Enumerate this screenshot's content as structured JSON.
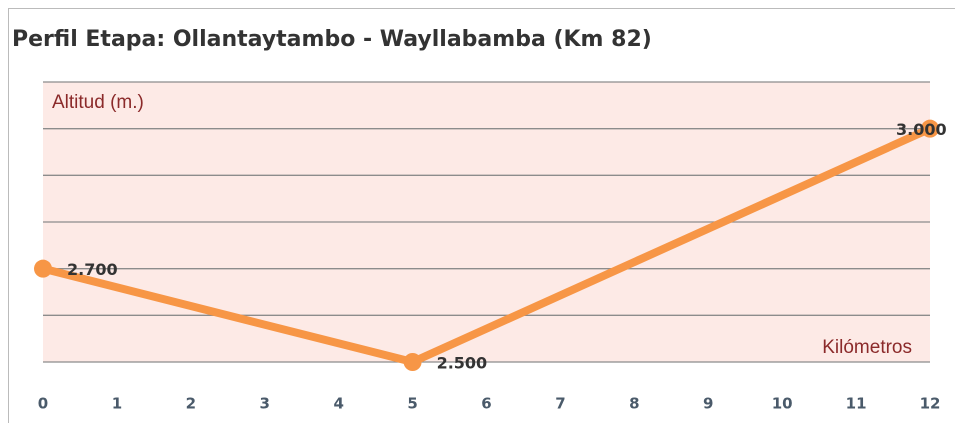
{
  "chart_data": {
    "type": "line",
    "title": "Perfil Etapa: Ollantaytambo - Wayllabamba (Km 82)",
    "ylabel": "Altitud (m.)",
    "xlabel": "Kilómetros",
    "x": [
      0,
      5,
      12
    ],
    "series": [
      {
        "color": "#f79646",
        "values": [
          2700,
          2500,
          3000
        ],
        "value_labels": [
          "2.700",
          "2.500",
          "3.000"
        ]
      }
    ],
    "xlim": [
      0,
      12
    ],
    "xticks": [
      0,
      1,
      2,
      3,
      4,
      5,
      6,
      7,
      8,
      9,
      10,
      11,
      12
    ],
    "ylim": [
      2500,
      3100
    ],
    "yticks": [
      2500,
      2600,
      2700,
      2800,
      2900,
      3000,
      3100
    ],
    "grid": true
  }
}
